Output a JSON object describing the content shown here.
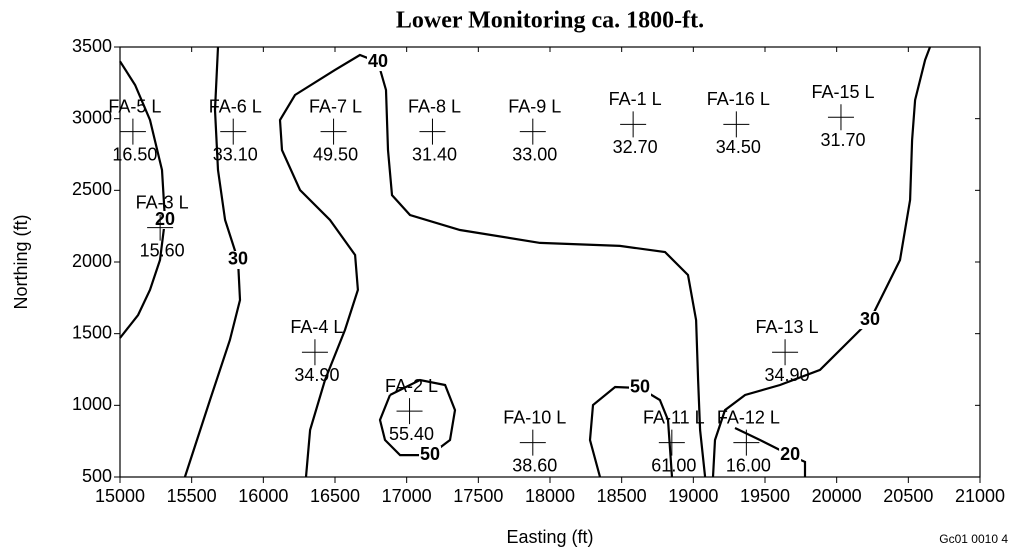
{
  "chart_data": {
    "type": "contour",
    "title": "Lower Monitoring ca. 1800-ft.",
    "xlabel": "Easting (ft)",
    "ylabel": "Northing (ft)",
    "footer": "Gc01 0010 4",
    "xlim": [
      15000,
      21000
    ],
    "ylim": [
      500,
      3500
    ],
    "xticks": [
      15000,
      15500,
      16000,
      16500,
      17000,
      17500,
      18000,
      18500,
      19000,
      19500,
      20000,
      20500,
      21000
    ],
    "yticks": [
      500,
      1000,
      1500,
      2000,
      2500,
      3000,
      3500
    ],
    "wells": {
      "names": [
        "FA-5 L",
        "FA-6 L",
        "FA-7 L",
        "FA-8 L",
        "FA-9 L",
        "FA-1 L",
        "FA-16 L",
        "FA-15 L",
        "FA-3 L",
        "FA-4 L",
        "FA-2 L",
        "FA-10 L",
        "FA-11 L",
        "FA-12 L",
        "FA-13 L"
      ],
      "x": [
        15090,
        15790,
        16490,
        17180,
        17880,
        18580,
        19300,
        20030,
        15280,
        16360,
        17020,
        17880,
        18850,
        19370,
        19640
      ],
      "y": [
        2910,
        2910,
        2910,
        2910,
        2910,
        2960,
        2960,
        3010,
        2240,
        1370,
        960,
        740,
        740,
        740,
        1370
      ],
      "values": [
        16.5,
        33.1,
        49.5,
        31.4,
        33.0,
        32.7,
        34.5,
        31.7,
        15.6,
        34.9,
        55.4,
        38.6,
        61.0,
        16.0,
        34.9
      ],
      "value_labels": [
        "16.50",
        "33.10",
        "49.50",
        "31.40",
        "33.00",
        "32.70",
        "34.50",
        "31.70",
        "15.60",
        "34.90",
        "55.40",
        "38.60",
        "61.00",
        "16.00",
        "34.90"
      ]
    },
    "contours": [
      {
        "level": 20,
        "x": [
          15000,
          15105,
          15209,
          15293,
          15314,
          15279,
          15209,
          15126,
          15000
        ],
        "y": [
          3400,
          3235,
          2991,
          2642,
          2293,
          2014,
          1805,
          1630,
          1470
        ]
      },
      {
        "level": 30,
        "x": [
          15684,
          15663,
          15684,
          15733,
          15823,
          15837,
          15767,
          15628,
          15453
        ],
        "y": [
          3500,
          3061,
          2642,
          2293,
          2014,
          1735,
          1456,
          1037,
          500
        ]
      },
      {
        "level": 40,
        "x": [
          16298,
          16326,
          16430,
          16570,
          16660,
          16640,
          16465,
          16256,
          16130,
          16116,
          16221,
          16500,
          16674,
          16800,
          16856,
          16870,
          16898,
          17023,
          17372,
          17930,
          18488,
          18802,
          18963,
          19019,
          19033,
          19047,
          19082
        ],
        "y": [
          500,
          828,
          1177,
          1526,
          1805,
          2049,
          2293,
          2502,
          2781,
          2991,
          3165,
          3340,
          3444,
          3395,
          3200,
          2781,
          2467,
          2328,
          2223,
          2133,
          2112,
          2070,
          1909,
          1595,
          1177,
          828,
          500
        ]
      },
      {
        "level": 30,
        "x": [
          19137,
          19151,
          19221,
          19361,
          19605,
          19884,
          20233,
          20442,
          20512,
          20526,
          20547,
          20617,
          20651
        ],
        "y": [
          500,
          758,
          967,
          1072,
          1142,
          1247,
          1595,
          2014,
          2433,
          2851,
          3130,
          3409,
          3500
        ]
      },
      {
        "level": 20,
        "x": [
          19291,
          19465,
          19675,
          19779,
          19779
        ],
        "y": [
          842,
          758,
          653,
          605,
          500
        ]
      },
      {
        "level": 50,
        "x": [
          16884,
          17093,
          17268,
          17337,
          17302,
          17163,
          16954,
          16849,
          16814,
          16884
        ],
        "y": [
          1072,
          1177,
          1142,
          967,
          758,
          653,
          653,
          758,
          898,
          1072
        ]
      },
      {
        "level": 50,
        "x": [
          18349,
          18279,
          18300,
          18454,
          18628,
          18767,
          18823,
          18851
        ],
        "y": [
          500,
          758,
          1002,
          1128,
          1121,
          1037,
          898,
          500
        ]
      }
    ]
  }
}
